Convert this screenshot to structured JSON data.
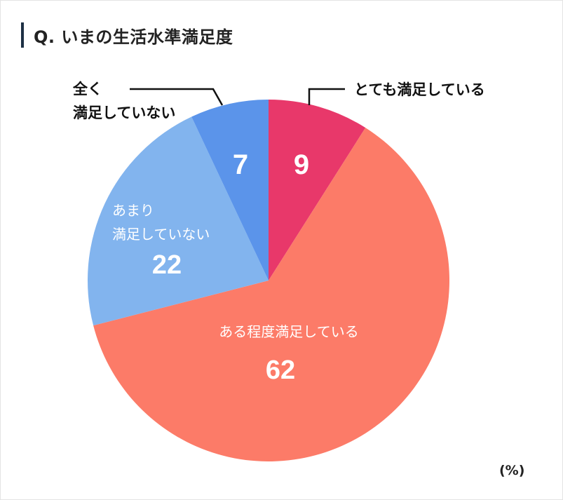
{
  "header": {
    "title": "Q. いまの生活水準満足度"
  },
  "unit_label": "(%)",
  "colors": {
    "very_satisfied": "#e8386a",
    "somewhat_satisfied": "#fc7b68",
    "not_very_satisfied": "#82b4ee",
    "not_at_all_satisfied": "#5b94ea",
    "title_bar": "#1d3044"
  },
  "chart_data": {
    "type": "pie",
    "title": "Q. いまの生活水準満足度",
    "unit": "(%)",
    "start_angle_deg": 0,
    "direction": "clockwise",
    "slices": [
      {
        "label": "とても満足している",
        "value": 9,
        "color": "#e8386a",
        "label_position": "outside"
      },
      {
        "label": "ある程度満足している",
        "value": 62,
        "color": "#fc7b68",
        "label_position": "inside"
      },
      {
        "label": "あまり満足していない",
        "value": 22,
        "color": "#82b4ee",
        "label_position": "inside"
      },
      {
        "label": "全く満足していない",
        "value": 7,
        "color": "#5b94ea",
        "label_position": "outside"
      }
    ]
  }
}
